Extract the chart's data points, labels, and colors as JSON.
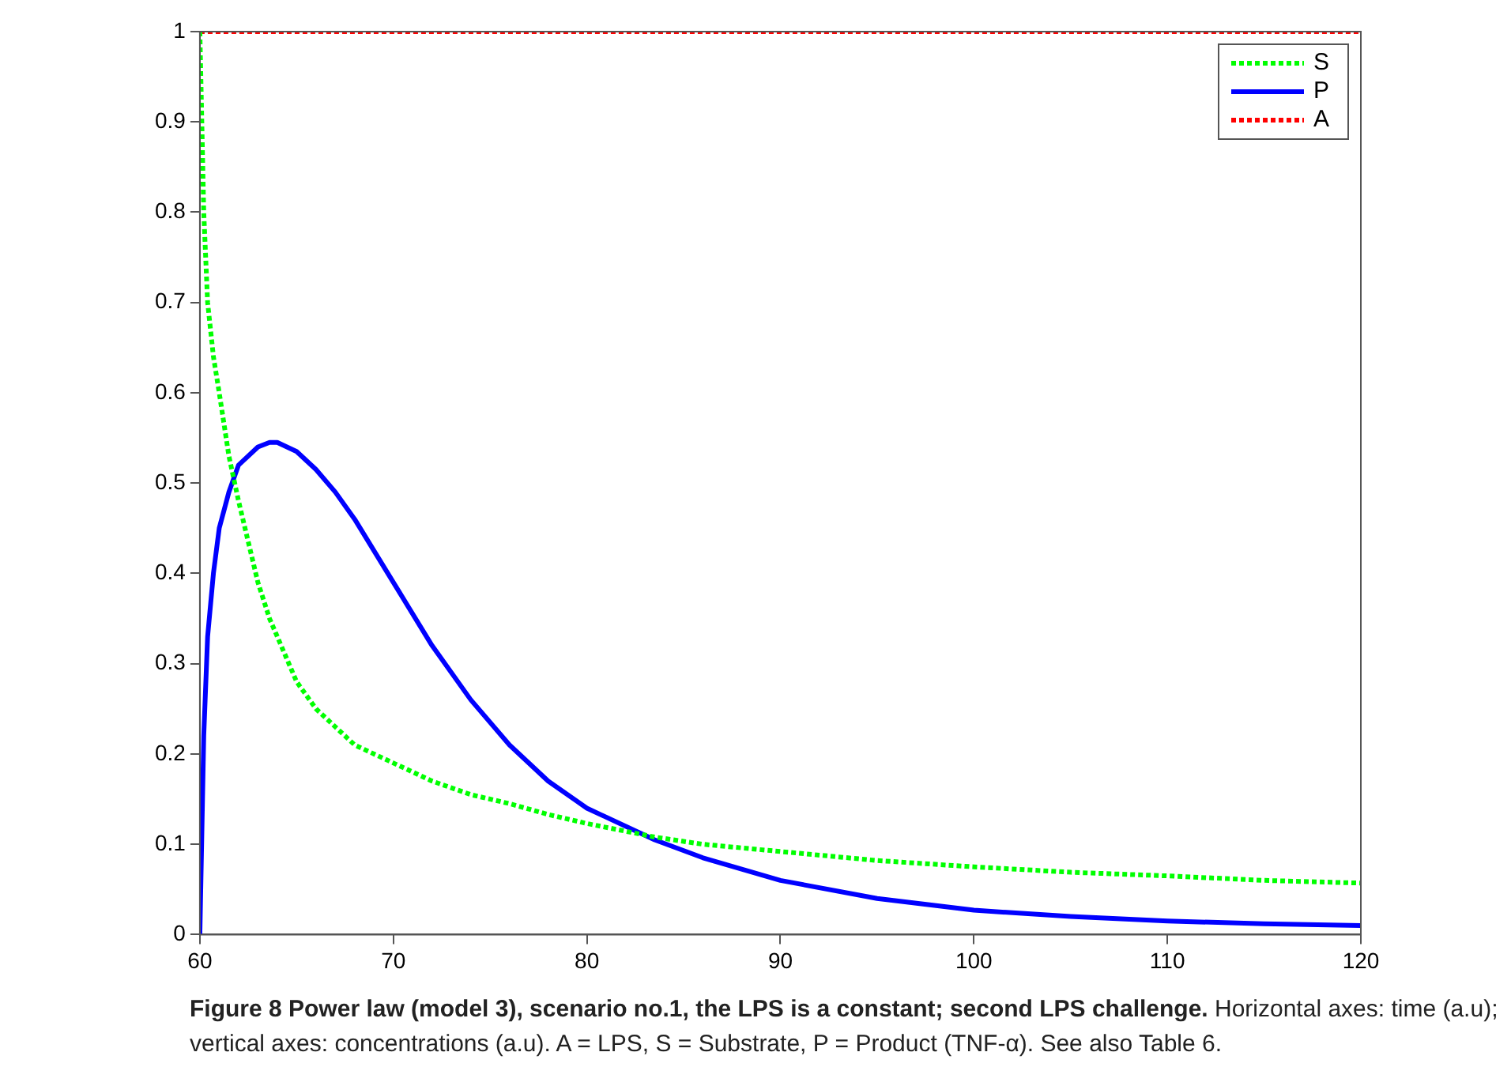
{
  "chart_data": {
    "type": "line",
    "x": [
      60,
      60.2,
      60.4,
      60.7,
      61,
      61.5,
      62,
      63,
      63.6,
      64,
      65,
      66,
      67,
      68,
      70,
      72,
      74,
      76,
      78,
      80,
      83.5,
      86,
      90,
      95,
      100,
      105,
      110,
      115,
      120
    ],
    "series": [
      {
        "name": "S",
        "color": "#00ff00",
        "line_style": "dotted",
        "values": [
          1.0,
          0.8,
          0.7,
          0.64,
          0.6,
          0.53,
          0.48,
          0.39,
          0.35,
          0.33,
          0.28,
          0.25,
          0.23,
          0.21,
          0.19,
          0.17,
          0.155,
          0.145,
          0.133,
          0.123,
          0.108,
          0.1,
          0.092,
          0.082,
          0.075,
          0.069,
          0.065,
          0.06,
          0.057
        ]
      },
      {
        "name": "P",
        "color": "#0000ff",
        "line_style": "solid",
        "values": [
          0,
          0.22,
          0.33,
          0.4,
          0.45,
          0.49,
          0.52,
          0.54,
          0.545,
          0.545,
          0.535,
          0.515,
          0.49,
          0.46,
          0.39,
          0.32,
          0.26,
          0.21,
          0.17,
          0.14,
          0.105,
          0.085,
          0.06,
          0.04,
          0.027,
          0.02,
          0.015,
          0.012,
          0.01
        ]
      },
      {
        "name": "A",
        "color": "#ff0000",
        "line_style": "dotted",
        "x": [
          60,
          120
        ],
        "values": [
          1,
          1
        ]
      }
    ],
    "xlim": [
      60,
      120
    ],
    "xticks": [
      60,
      70,
      80,
      90,
      100,
      110,
      120
    ],
    "ylim": [
      0,
      1
    ],
    "yticks": [
      0,
      0.1,
      0.2,
      0.3,
      0.4,
      0.5,
      0.6,
      0.7,
      0.8,
      0.9,
      1
    ],
    "grid": false,
    "legend": "top right",
    "marker": "none",
    "annotations": [
      "Figure 8 Power law (model 3), scenario no.1, the LPS is a constant; second LPS challenge.",
      "Horizontal axes: time (a.u); vertical axes: concentrations (a.u). A = LPS, S = Substrate, P = Product (TNF-α). See also Table 6."
    ]
  }
}
